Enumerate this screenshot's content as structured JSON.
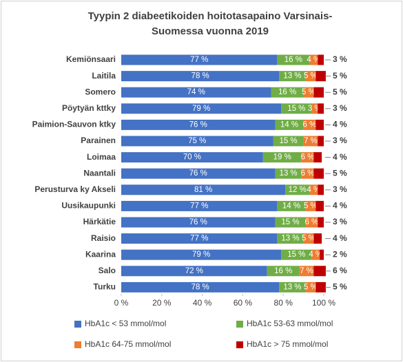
{
  "chart_data": {
    "type": "stacked-bar-horizontal",
    "title": [
      "Tyypin 2 diabeetikoiden hoitotasapaino Varsinais-",
      "Suomessa vuonna 2019"
    ],
    "categories": [
      "Kemiönsaari",
      "Laitila",
      "Somero",
      "Pöytyän kttky",
      "Paimion-Sauvon ktky",
      "Parainen",
      "Loimaa",
      "Naantali",
      "Perusturva ky Akseli",
      "Uusikaupunki",
      "Härkätie",
      "Raisio",
      "Kaarina",
      "Salo",
      "Turku"
    ],
    "series": [
      {
        "name": "HbA1c < 53 mmol/mol",
        "color": "#4472c4",
        "values": [
          77,
          78,
          74,
          79,
          76,
          75,
          70,
          76,
          81,
          77,
          76,
          77,
          79,
          72,
          78
        ],
        "value_labels": [
          "77 %",
          "78 %",
          "74 %",
          "79 %",
          "76 %",
          "75 %",
          "70 %",
          "76 %",
          "81 %",
          "77 %",
          "76 %",
          "77 %",
          "79 %",
          "72 %",
          "78 %"
        ]
      },
      {
        "name": "HbA1c 53-63 mmol/mol",
        "color": "#70ad47",
        "values": [
          16,
          13,
          16,
          15,
          14,
          15,
          19,
          13,
          12,
          14,
          15,
          13,
          15,
          16,
          13
        ],
        "value_labels": [
          "16 %",
          "13 %",
          "16 %",
          "15 %",
          "14 %",
          "15 %",
          "19 %",
          "13 %",
          "12 %",
          "14 %",
          "15 %",
          "13 %",
          "15 %",
          "16 %",
          "13 %"
        ]
      },
      {
        "name": "HbA1c 64-75 mmol/mol",
        "color": "#ed7d31",
        "values": [
          4,
          5,
          5,
          3,
          6,
          7,
          6,
          6,
          4,
          5,
          6,
          5,
          4,
          7,
          5
        ],
        "value_labels": [
          "4 %",
          "5 %",
          "5 %",
          "3 %",
          "6 %",
          "7 %",
          "6 %",
          "6 %",
          "4 %",
          "5 %",
          "6 %",
          "5 %",
          "4 %",
          "7 %",
          "5 %"
        ]
      },
      {
        "name": "HbA1c > 75 mmol/mol",
        "color": "#c00000",
        "values": [
          3,
          5,
          5,
          3,
          4,
          3,
          4,
          5,
          3,
          4,
          3,
          4,
          2,
          6,
          5
        ],
        "value_labels": [
          "3 %",
          "5 %",
          "5 %",
          "3 %",
          "4 %",
          "3 %",
          "4 %",
          "5 %",
          "3 %",
          "4 %",
          "3 %",
          "4 %",
          "2 %",
          "6 %",
          "5 %"
        ]
      }
    ],
    "xlim": [
      0,
      100
    ],
    "xticks": [
      {
        "value": 0,
        "label": "0 %"
      },
      {
        "value": 20,
        "label": "20 %"
      },
      {
        "value": 40,
        "label": "40 %"
      },
      {
        "value": 60,
        "label": "60 %"
      },
      {
        "value": 80,
        "label": "80 %"
      },
      {
        "value": 100,
        "label": "100 %"
      }
    ],
    "legend": "bottom"
  }
}
